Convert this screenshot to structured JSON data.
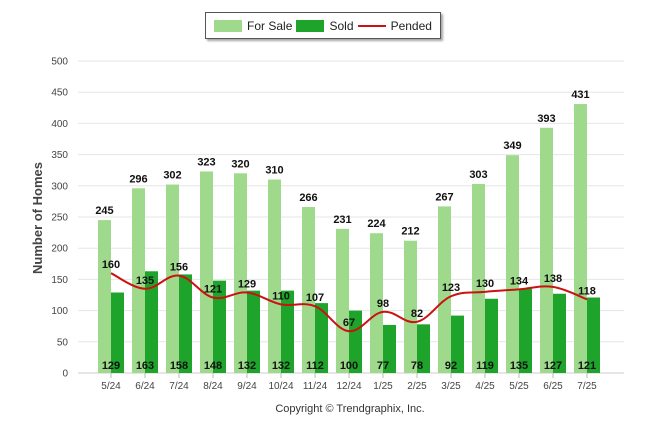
{
  "legend": {
    "for_sale_label": "For Sale",
    "sold_label": "Sold",
    "pended_label": "Pended"
  },
  "copyright": "Copyright © Trendgraphix, Inc.",
  "colors": {
    "for_sale": "#9ed98c",
    "sold": "#1ea42a",
    "pended": "#cc1111",
    "grid": "#e6e6e6",
    "axis_text": "#444444"
  },
  "chart_data": {
    "type": "bar",
    "ylabel": "Number of Homes",
    "xlabel": "",
    "ylim": [
      0,
      500
    ],
    "yticks": [
      0,
      50,
      100,
      150,
      200,
      250,
      300,
      350,
      400,
      450,
      500
    ],
    "grid": true,
    "legend_position": "top-center",
    "categories": [
      "5/24",
      "6/24",
      "7/24",
      "8/24",
      "9/24",
      "10/24",
      "11/24",
      "12/24",
      "1/25",
      "2/25",
      "3/25",
      "4/25",
      "5/25",
      "6/25",
      "7/25"
    ],
    "series": [
      {
        "name": "For Sale",
        "type": "bar",
        "values": [
          245,
          296,
          302,
          323,
          320,
          310,
          266,
          231,
          224,
          212,
          267,
          303,
          349,
          393,
          431
        ]
      },
      {
        "name": "Sold",
        "type": "bar",
        "values": [
          129,
          163,
          158,
          148,
          132,
          132,
          112,
          100,
          77,
          78,
          92,
          119,
          135,
          127,
          121
        ]
      },
      {
        "name": "Pended",
        "type": "line",
        "values": [
          160,
          135,
          156,
          121,
          129,
          110,
          107,
          67,
          98,
          82,
          123,
          130,
          134,
          138,
          118
        ]
      }
    ]
  }
}
